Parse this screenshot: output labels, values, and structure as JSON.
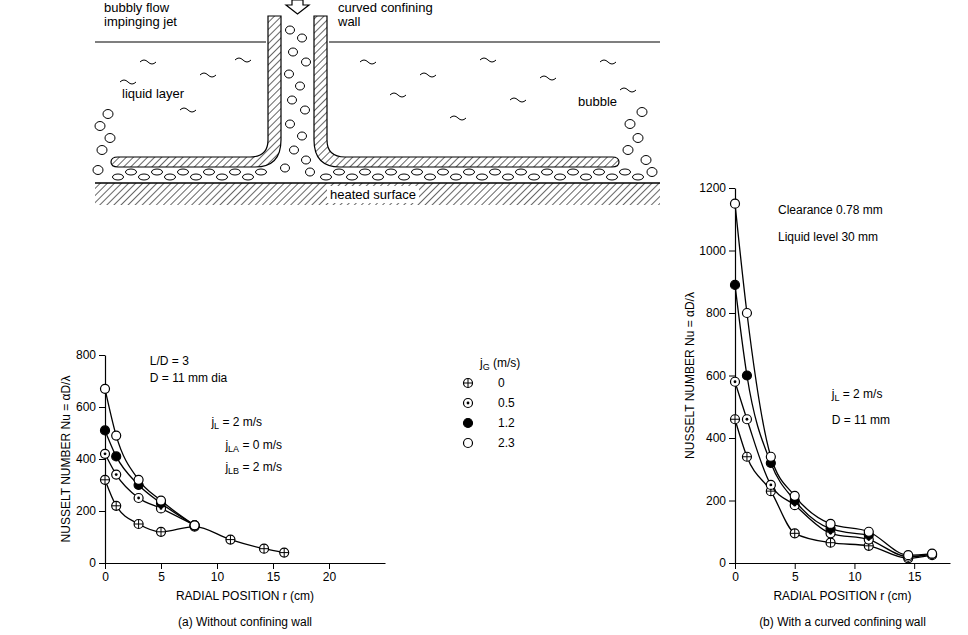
{
  "diagram": {
    "labels": [
      {
        "lines": [
          "bubbly flow",
          "impinging jet"
        ]
      },
      {
        "lines": [
          "curved confining",
          "wall"
        ]
      },
      {
        "lines": [
          "liquid layer"
        ]
      },
      {
        "lines": [
          "bubble"
        ]
      },
      {
        "lines": [
          "heated surface"
        ]
      }
    ]
  },
  "chart_data": [
    {
      "type": "line",
      "title": "(a) Without confining wall",
      "x_label": "RADIAL POSITION  r (cm)",
      "y_label": "NUSSELT NUMBER   Nu = αD/λ",
      "xlim": [
        0,
        25
      ],
      "xticks": [
        0,
        5,
        10,
        15,
        20
      ],
      "ylim": [
        0,
        800
      ],
      "yticks": [
        0,
        200,
        400,
        600,
        800
      ],
      "legend": "right",
      "legend_title": "jG (m/s)",
      "annotations": [
        "L/D = 3",
        "D = 11 mm dia",
        "jL = 2 m/s",
        "jLA = 0 m/s",
        "jLB = 2 m/s"
      ],
      "series": [
        {
          "name": "0",
          "marker": "circle-plus",
          "color": "#000000",
          "x": [
            0,
            1,
            3,
            5,
            8,
            11.2,
            14.2,
            16
          ],
          "values": [
            320,
            220,
            150,
            120,
            140,
            90,
            55,
            40
          ]
        },
        {
          "name": "0.5",
          "marker": "circle-dot",
          "color": "#000000",
          "x": [
            0,
            1,
            3,
            5,
            8
          ],
          "values": [
            420,
            340,
            250,
            210,
            145
          ]
        },
        {
          "name": "1.2",
          "marker": "filled-circle",
          "color": "#000000",
          "x": [
            0,
            1,
            3,
            5,
            8
          ],
          "values": [
            510,
            410,
            300,
            230,
            145
          ]
        },
        {
          "name": "2.3",
          "marker": "open-circle",
          "color": "#000000",
          "x": [
            0,
            1,
            3,
            5,
            8
          ],
          "values": [
            670,
            490,
            320,
            240,
            145
          ]
        }
      ]
    },
    {
      "type": "line",
      "title": "(b) With a curved confining wall",
      "x_label": "RADIAL POSITION  r (cm)",
      "y_label": "NUSSELT NUMBER   Nu = αD/λ",
      "xlim": [
        0,
        18
      ],
      "xticks": [
        0,
        5,
        10,
        15
      ],
      "ylim": [
        0,
        1200
      ],
      "yticks": [
        0,
        200,
        400,
        600,
        800,
        1000,
        1200
      ],
      "annotations": [
        "Clearance  0.78 mm",
        "Liquid level  30 mm",
        "jL = 2 m/s",
        "D = 11 mm"
      ],
      "series": [
        {
          "marker": "circle-plus",
          "color": "#000000",
          "x": [
            0,
            1,
            3,
            5,
            8,
            11.2,
            14.5,
            16.5
          ],
          "values": [
            460,
            340,
            230,
            95,
            65,
            55,
            15,
            25
          ]
        },
        {
          "marker": "circle-dot",
          "color": "#000000",
          "x": [
            0,
            1,
            3,
            5,
            8,
            11.2,
            14.5,
            16.5
          ],
          "values": [
            580,
            460,
            250,
            185,
            95,
            75,
            20,
            28
          ]
        },
        {
          "marker": "filled-circle",
          "color": "#000000",
          "x": [
            0,
            1,
            3,
            5,
            8,
            11.2
          ],
          "values": [
            890,
            600,
            320,
            200,
            110,
            90
          ]
        },
        {
          "marker": "open-circle",
          "color": "#000000",
          "x": [
            0,
            1,
            3,
            5,
            8,
            11.2,
            14.5,
            16.5
          ],
          "values": [
            1150,
            800,
            340,
            215,
            125,
            100,
            25,
            30
          ]
        }
      ]
    }
  ]
}
